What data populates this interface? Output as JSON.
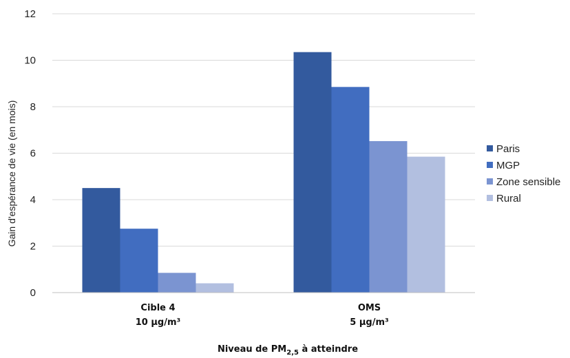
{
  "chart_data": {
    "type": "bar",
    "categories": [
      {
        "line1": "Cible 4",
        "line2": "10  µg/m³"
      },
      {
        "line1": "OMS",
        "line2": "5 µg/m³"
      }
    ],
    "series": [
      {
        "name": "Paris",
        "color": "#335a9e",
        "values": [
          4.5,
          10.35
        ]
      },
      {
        "name": "MGP",
        "color": "#416dc0",
        "values": [
          2.75,
          8.85
        ]
      },
      {
        "name": "Zone sensible",
        "color": "#7b94d1",
        "values": [
          0.85,
          6.52
        ]
      },
      {
        "name": "Rural",
        "color": "#b2bfe0",
        "values": [
          0.4,
          5.85
        ]
      }
    ],
    "ylabel": "Gain d'espérance de vie (en mois)",
    "xlabel": {
      "prefix": "Niveau de PM",
      "subscript": "2,5",
      "suffix": " à atteindre"
    },
    "ylim": [
      0,
      12
    ],
    "yticks": [
      0,
      2,
      4,
      6,
      8,
      10,
      12
    ],
    "grid": true,
    "legend_position": "right"
  }
}
